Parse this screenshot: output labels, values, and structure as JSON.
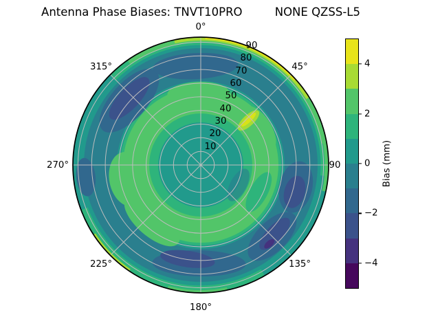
{
  "title": "Antenna Phase Biases: TNVT10PRO         NONE QZSS-L5",
  "polar": {
    "azimuth_labels": {
      "n": "0°",
      "ne": "45°",
      "e": "90",
      "se": "135°",
      "s": "180°",
      "sw": "225°",
      "w": "270°",
      "nw": "315°"
    },
    "radial_labels": [
      "10",
      "20",
      "30",
      "40",
      "50",
      "60",
      "70",
      "80",
      "90"
    ]
  },
  "colorbar": {
    "label": "Bias (mm)",
    "tick_labels": [
      "4",
      "2",
      "0",
      "−2",
      "−4"
    ],
    "tick_values": [
      4,
      2,
      0,
      -2,
      -4
    ],
    "range": [
      -5,
      5
    ],
    "band_colors_top_to_bottom": [
      "#e8e41a",
      "#a8db34",
      "#52c569",
      "#2eb47b",
      "#219a8c",
      "#2a7f8e",
      "#31688e",
      "#3b528b",
      "#45327e",
      "#46085c"
    ]
  },
  "palette": {
    "teal_base": "#219a8c",
    "teal_dark": "#2a7f8e",
    "steel_blue": "#31688e",
    "indigo": "#3b528b",
    "purple": "#45327e",
    "green_teal": "#2eb47b",
    "light_green": "#52c569",
    "yellow_green": "#a8db34",
    "chartreuse": "#d8e219",
    "yellow": "#e8e41a",
    "grid": "#bdbdbd",
    "outline": "#000000"
  },
  "chart_data": {
    "type": "heatmap",
    "projection": "polar",
    "title": "Antenna Phase Biases: TNVT10PRO   NONE QZSS-L5",
    "theta_zero": "north",
    "theta_direction": "clockwise",
    "theta_ticks_deg": [
      0,
      45,
      90,
      135,
      180,
      225,
      270,
      315
    ],
    "r_ticks": [
      10,
      20,
      30,
      40,
      50,
      60,
      70,
      80,
      90
    ],
    "r_max": 90,
    "value_label": "Bias (mm)",
    "value_range": [
      -5,
      5
    ],
    "contour_levels": [
      -5,
      -4,
      -3,
      -2,
      -1,
      0,
      1,
      2,
      3,
      4,
      5
    ],
    "colormap": "viridis",
    "colorbar_ticks": [
      -4,
      -2,
      0,
      2,
      4
    ],
    "legend_position": "right",
    "grid": true,
    "regions": [
      {
        "bias_mm": [
          0,
          1
        ],
        "where": "background field: center r<35 and thin ring r 58-62"
      },
      {
        "bias_mm": [
          2,
          3
        ],
        "where": "green annulus r 38-58 at most azimuths; bulges to r 70 at az 195-250 and 240-270"
      },
      {
        "bias_mm": [
          -1,
          0
        ],
        "where": "dark annulus r 62-85 all around"
      },
      {
        "bias_mm": [
          -2,
          -3
        ],
        "where": "patches inside dark annulus at az 290-335, 340-20, 150-210, 115-150, 95-120, 252-275"
      },
      {
        "bias_mm": [
          -3,
          -4
        ],
        "where": "small cores of the patches at az ~313, ~188, ~133, ~106"
      },
      {
        "bias_mm": [
          3,
          4
        ],
        "where": "outer rim az -12 to 58 deg, sliver at az 214-237, radial streak az ~47 r 40-55"
      },
      {
        "bias_mm": [
          4,
          5
        ],
        "where": "bright yellow rim arc az 2-48 deg, r>88"
      }
    ]
  }
}
